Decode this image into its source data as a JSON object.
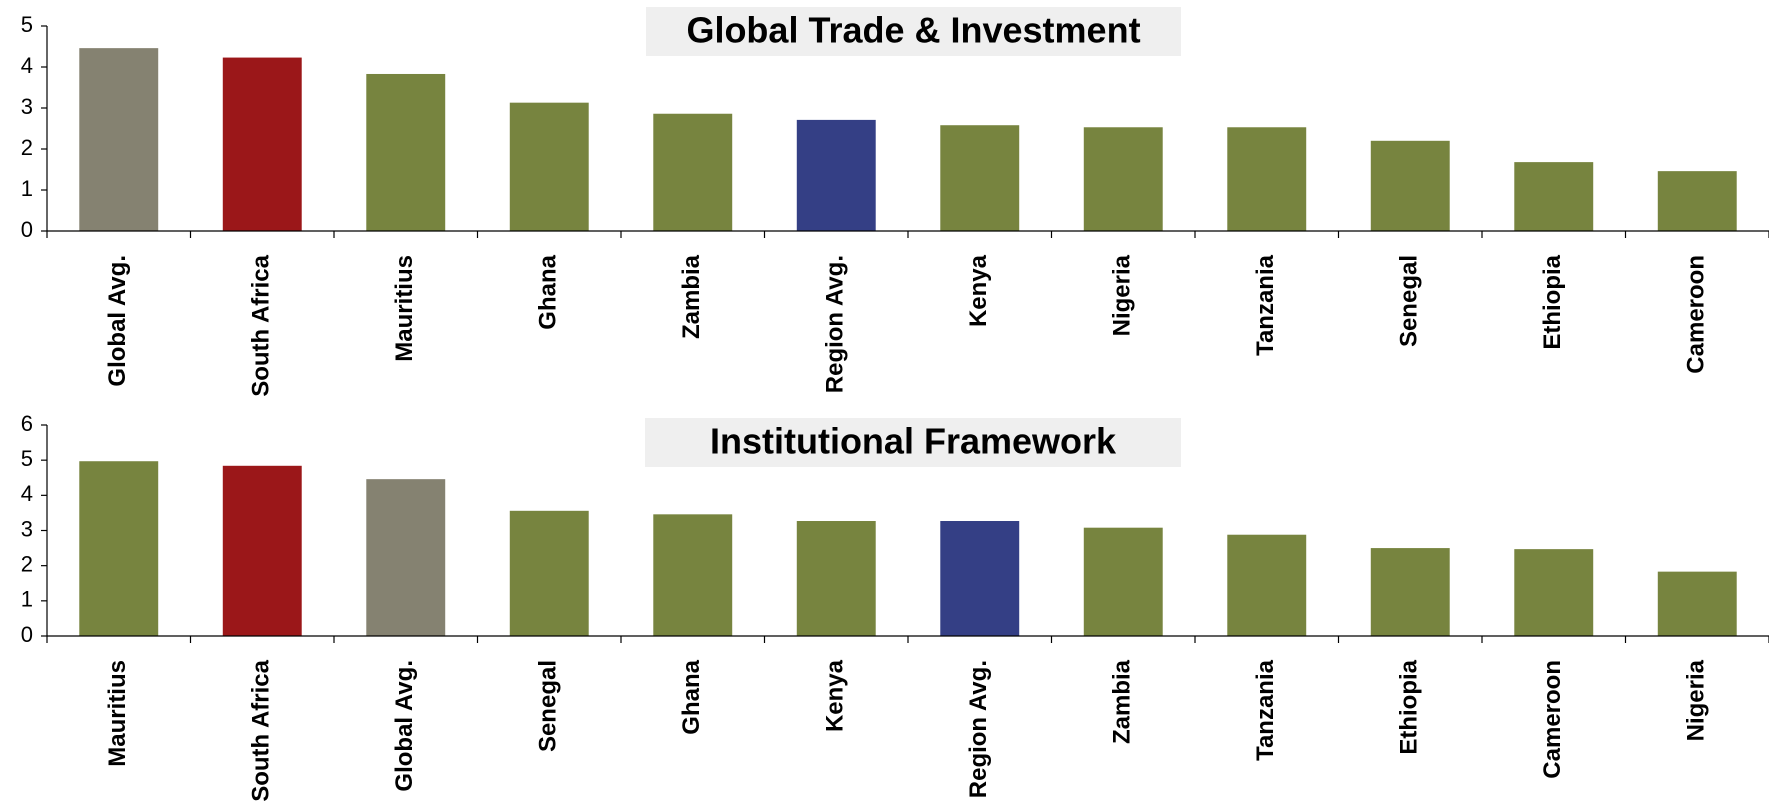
{
  "chart_data": [
    {
      "type": "bar",
      "title": "Global Trade & Investment",
      "categories": [
        "Global Avg.",
        "South Africa",
        "Mauritius",
        "Ghana",
        "Zambia",
        "Region Avg.",
        "Kenya",
        "Nigeria",
        "Tanzania",
        "Senegal",
        "Ethiopia",
        "Cameroon"
      ],
      "values": [
        4.46,
        4.23,
        3.83,
        3.13,
        2.86,
        2.71,
        2.58,
        2.53,
        2.53,
        2.2,
        1.68,
        1.46
      ],
      "colors": [
        "#858271",
        "#9b1719",
        "#77843f",
        "#77843f",
        "#77843f",
        "#343f85",
        "#77843f",
        "#77843f",
        "#77843f",
        "#77843f",
        "#77843f",
        "#77843f"
      ],
      "ylim": [
        0,
        5
      ],
      "yticks": [
        0,
        1,
        2,
        3,
        4,
        5
      ]
    },
    {
      "type": "bar",
      "title": "Institutional Framework",
      "categories": [
        "Mauritius",
        "South Africa",
        "Global Avg.",
        "Senegal",
        "Ghana",
        "Kenya",
        "Region Avg.",
        "Zambia",
        "Tanzania",
        "Ethiopia",
        "Cameroon",
        "Nigeria"
      ],
      "values": [
        4.97,
        4.84,
        4.46,
        3.56,
        3.46,
        3.27,
        3.27,
        3.08,
        2.88,
        2.5,
        2.47,
        1.83
      ],
      "colors": [
        "#77843f",
        "#9b1719",
        "#858271",
        "#77843f",
        "#77843f",
        "#77843f",
        "#343f85",
        "#77843f",
        "#77843f",
        "#77843f",
        "#77843f",
        "#77843f"
      ],
      "ylim": [
        0,
        6
      ],
      "yticks": [
        0,
        1,
        2,
        3,
        4,
        5,
        6
      ]
    }
  ]
}
